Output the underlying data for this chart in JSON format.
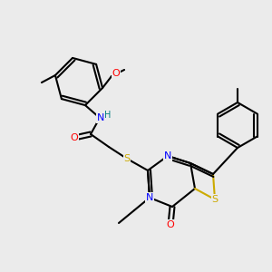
{
  "background_color": "#ebebeb",
  "bond_color": "#000000",
  "atom_colors": {
    "N": "#0000ff",
    "O": "#ff0000",
    "S": "#ccaa00",
    "H": "#008080",
    "C": "#000000"
  },
  "figsize": [
    3.0,
    3.0
  ],
  "dpi": 100
}
